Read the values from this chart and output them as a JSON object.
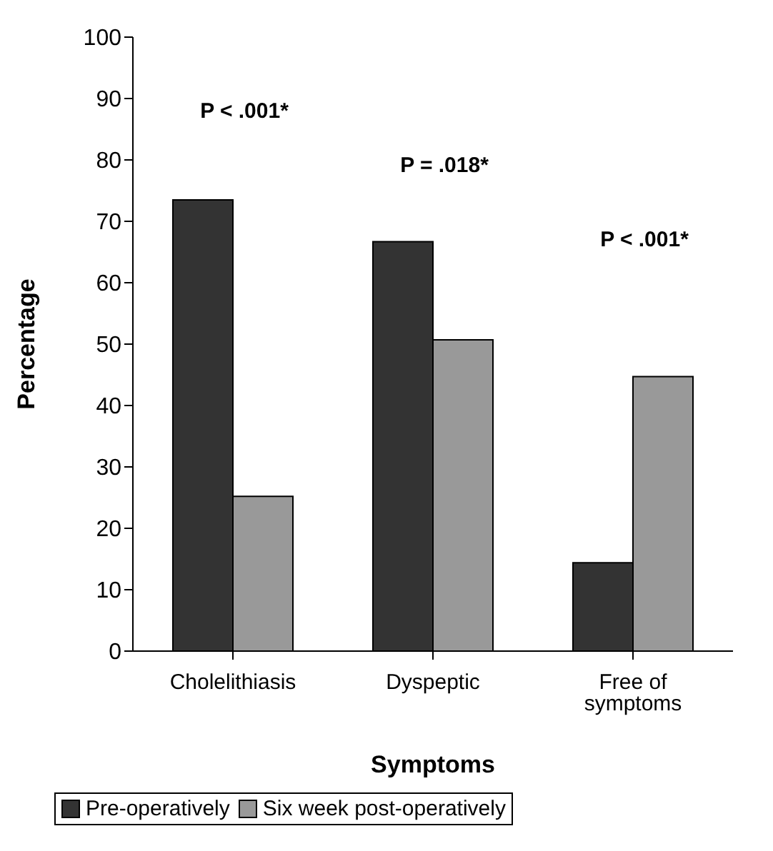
{
  "chart_data": {
    "type": "bar",
    "xlabel": "Symptoms",
    "ylabel": "Percentage",
    "categories": [
      "Cholelithiasis",
      "Dyspeptic",
      "Free of symptoms"
    ],
    "series": [
      {
        "name": "Pre-operatively",
        "color": "#333333",
        "values": [
          73.5,
          66.7,
          14.4
        ]
      },
      {
        "name": "Six week post-operatively",
        "color": "#999999",
        "values": [
          25.2,
          50.7,
          44.7
        ]
      }
    ],
    "ylim": [
      0,
      100
    ],
    "yticks": [
      0,
      10,
      20,
      30,
      40,
      50,
      60,
      70,
      80,
      90,
      100
    ],
    "grid": false,
    "legend": "bottom",
    "annotations": [
      "P < .001*",
      "P = .018*",
      "P < .001*"
    ]
  }
}
